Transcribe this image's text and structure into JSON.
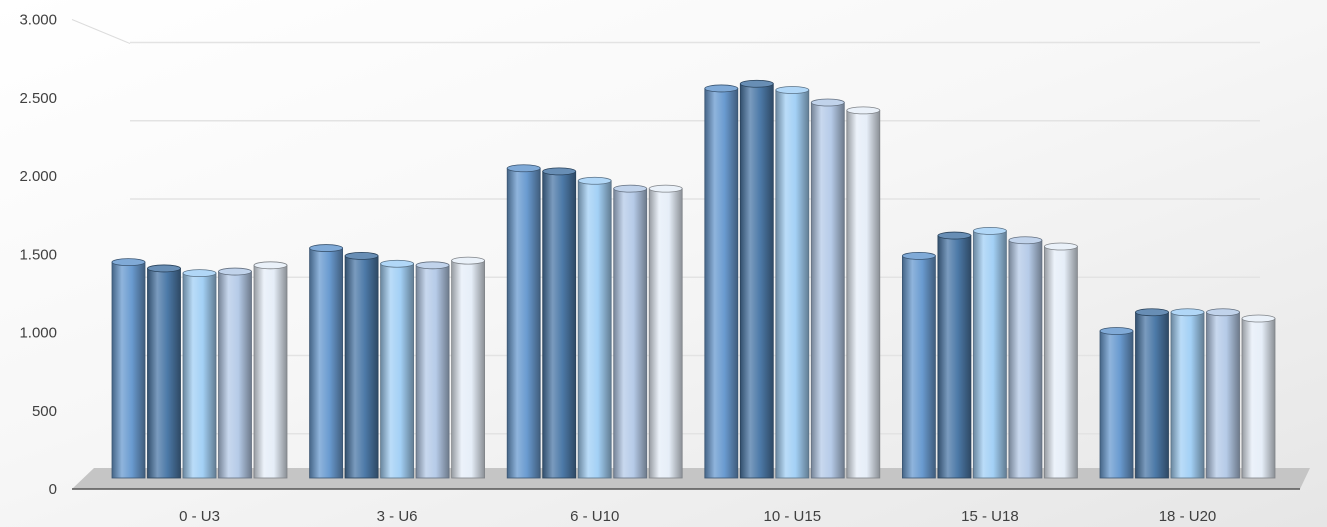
{
  "chart_data": {
    "type": "bar",
    "title": "",
    "xlabel": "",
    "ylabel": "",
    "ylim": [
      0,
      3000
    ],
    "yticks": [
      0,
      500,
      1000,
      1500,
      2000,
      2500,
      3000
    ],
    "ytick_labels": [
      "0",
      "500",
      "1.000",
      "1.500",
      "2.000",
      "2.500",
      "3.000"
    ],
    "grid": true,
    "legend": "none",
    "style": "3d-cylinder",
    "categories": [
      "0 - U3",
      "3 - U6",
      "6 - U10",
      "10 - U15",
      "15 - U18",
      "18 - U20"
    ],
    "series": [
      {
        "values": [
          1360,
          1450,
          1960,
          2470,
          1400,
          920
        ],
        "color": "#6a9bd0"
      },
      {
        "values": [
          1320,
          1400,
          1940,
          2500,
          1530,
          1040
        ],
        "color": "#4d7aa8"
      },
      {
        "values": [
          1290,
          1350,
          1880,
          2460,
          1560,
          1040
        ],
        "color": "#a3d0f5"
      },
      {
        "values": [
          1300,
          1340,
          1830,
          2380,
          1500,
          1040
        ],
        "color": "#b6cbe8"
      },
      {
        "values": [
          1340,
          1370,
          1830,
          2330,
          1460,
          1000
        ],
        "color": "#e6eef8"
      }
    ]
  }
}
